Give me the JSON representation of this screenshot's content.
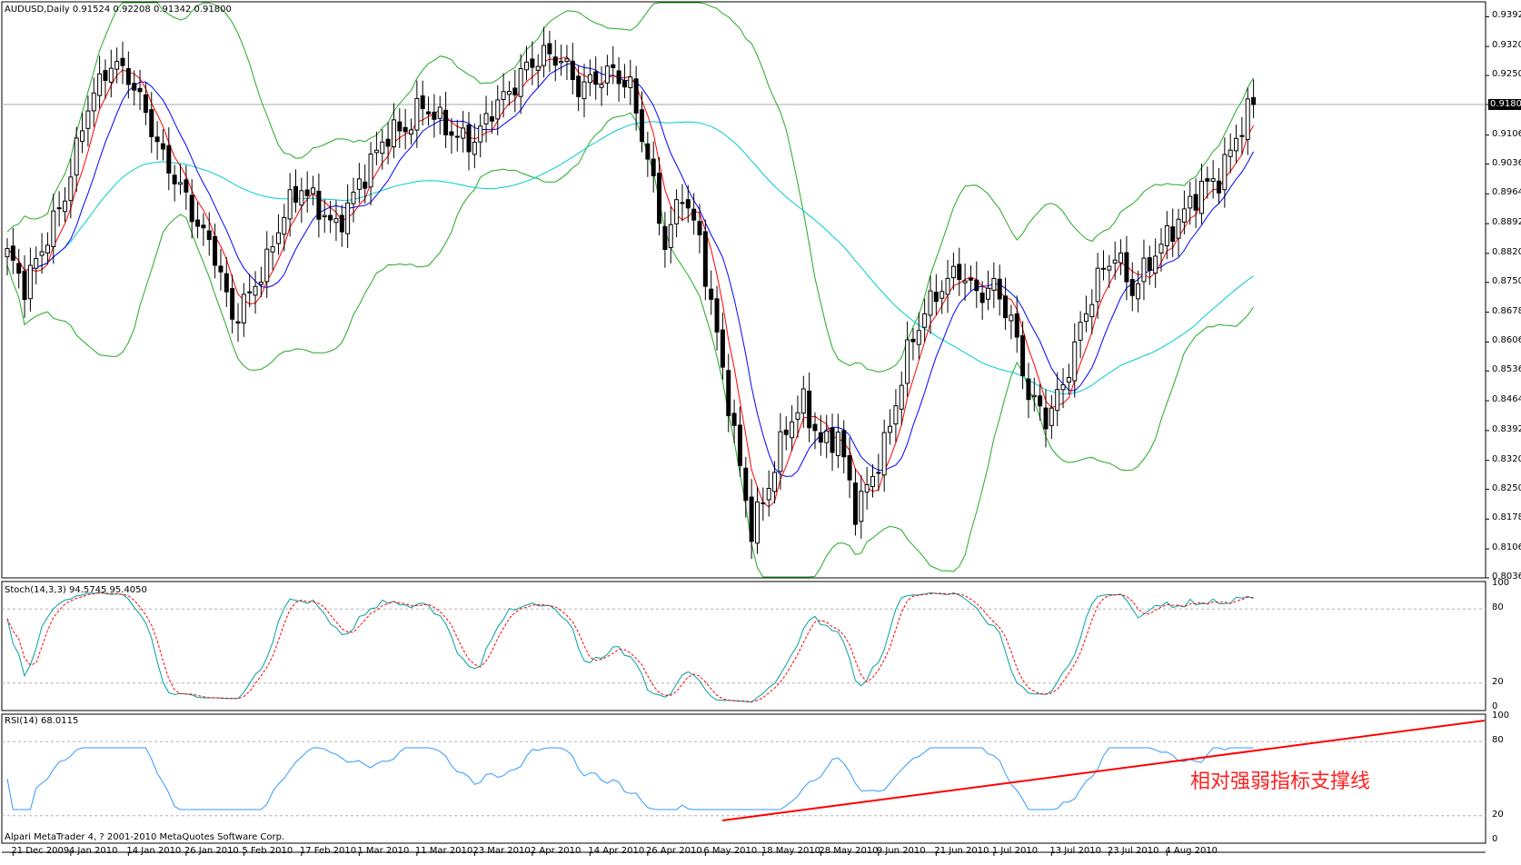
{
  "chart_data": {
    "type": "candlestick",
    "symbol_title": "AUDUSD,Daily  0.91524 0.92208 0.91342 0.91800",
    "price_axis": {
      "ticks": [
        "0.93920",
        "0.93200",
        "0.92500",
        "0.91800",
        "0.91060",
        "0.90360",
        "0.89640",
        "0.88920",
        "0.88200",
        "0.87500",
        "0.86780",
        "0.86060",
        "0.85360",
        "0.84640",
        "0.83920",
        "0.83200",
        "0.82500",
        "0.81780",
        "0.81060",
        "0.80360"
      ],
      "range": [
        0.8036,
        0.9428
      ],
      "current_price": "0.91800"
    },
    "date_axis": [
      "21 Dec 2009",
      "4 Jan 2010",
      "14 Jan 2010",
      "26 Jan 2010",
      "5 Feb 2010",
      "17 Feb 2010",
      "1 Mar 2010",
      "11 Mar 2010",
      "23 Mar 2010",
      "2 Apr 2010",
      "14 Apr 2010",
      "26 Apr 2010",
      "6 May 2010",
      "18 May 2010",
      "28 May 2010",
      "9 Jun 2010",
      "21 Jun 2010",
      "1 Jul 2010",
      "13 Jul 2010",
      "23 Jul 2010",
      "4 Aug 2010"
    ],
    "stoch": {
      "title": "Stoch(14,3,3) 94.5745 95.4050",
      "levels": [
        "100",
        "80",
        "20",
        "0"
      ]
    },
    "rsi": {
      "title": "RSI(14) 68.0115",
      "levels": [
        "100",
        "80",
        "20",
        "0"
      ]
    },
    "close_anchors": [
      [
        0,
        0.882
      ],
      [
        3,
        0.874
      ],
      [
        6,
        0.883
      ],
      [
        10,
        0.896
      ],
      [
        14,
        0.918
      ],
      [
        18,
        0.928
      ],
      [
        21,
        0.925
      ],
      [
        24,
        0.916
      ],
      [
        27,
        0.905
      ],
      [
        30,
        0.898
      ],
      [
        33,
        0.889
      ],
      [
        36,
        0.882
      ],
      [
        39,
        0.866
      ],
      [
        42,
        0.872
      ],
      [
        45,
        0.88
      ],
      [
        48,
        0.892
      ],
      [
        51,
        0.898
      ],
      [
        54,
        0.893
      ],
      [
        57,
        0.888
      ],
      [
        60,
        0.896
      ],
      [
        63,
        0.904
      ],
      [
        66,
        0.911
      ],
      [
        69,
        0.912
      ],
      [
        72,
        0.918
      ],
      [
        75,
        0.914
      ],
      [
        78,
        0.91
      ],
      [
        81,
        0.909
      ],
      [
        84,
        0.917
      ],
      [
        87,
        0.921
      ],
      [
        90,
        0.927
      ],
      [
        93,
        0.93
      ],
      [
        96,
        0.929
      ],
      [
        99,
        0.922
      ],
      [
        102,
        0.924
      ],
      [
        105,
        0.926
      ],
      [
        108,
        0.922
      ],
      [
        111,
        0.905
      ],
      [
        114,
        0.884
      ],
      [
        117,
        0.897
      ],
      [
        120,
        0.885
      ],
      [
        123,
        0.862
      ],
      [
        126,
        0.838
      ],
      [
        129,
        0.815
      ],
      [
        132,
        0.826
      ],
      [
        135,
        0.84
      ],
      [
        138,
        0.846
      ],
      [
        141,
        0.836
      ],
      [
        144,
        0.838
      ],
      [
        147,
        0.82
      ],
      [
        150,
        0.828
      ],
      [
        153,
        0.84
      ],
      [
        156,
        0.858
      ],
      [
        159,
        0.868
      ],
      [
        162,
        0.874
      ],
      [
        165,
        0.878
      ],
      [
        168,
        0.872
      ],
      [
        171,
        0.874
      ],
      [
        174,
        0.866
      ],
      [
        177,
        0.848
      ],
      [
        180,
        0.842
      ],
      [
        183,
        0.85
      ],
      [
        186,
        0.864
      ],
      [
        189,
        0.876
      ],
      [
        192,
        0.882
      ],
      [
        195,
        0.873
      ],
      [
        198,
        0.88
      ],
      [
        201,
        0.886
      ],
      [
        204,
        0.892
      ],
      [
        207,
        0.898
      ],
      [
        210,
        0.9
      ],
      [
        213,
        0.91
      ],
      [
        215,
        0.916
      ],
      [
        216,
        0.918
      ]
    ],
    "colors": {
      "upper_lower_band": "#22aa22",
      "fast_ma": "#ff0000",
      "slow_ma": "#0000ff",
      "long_ma": "#00cccc",
      "stoch_main": "#00a0a0",
      "stoch_signal": "#ff0000",
      "rsi_line": "#3399ff",
      "trendline": "#ff0000"
    }
  },
  "annotation": "相对强弱指标支撑线",
  "footer": "Alpari MetaTrader 4, ? 2001-2010 MetaQuotes Software Corp."
}
